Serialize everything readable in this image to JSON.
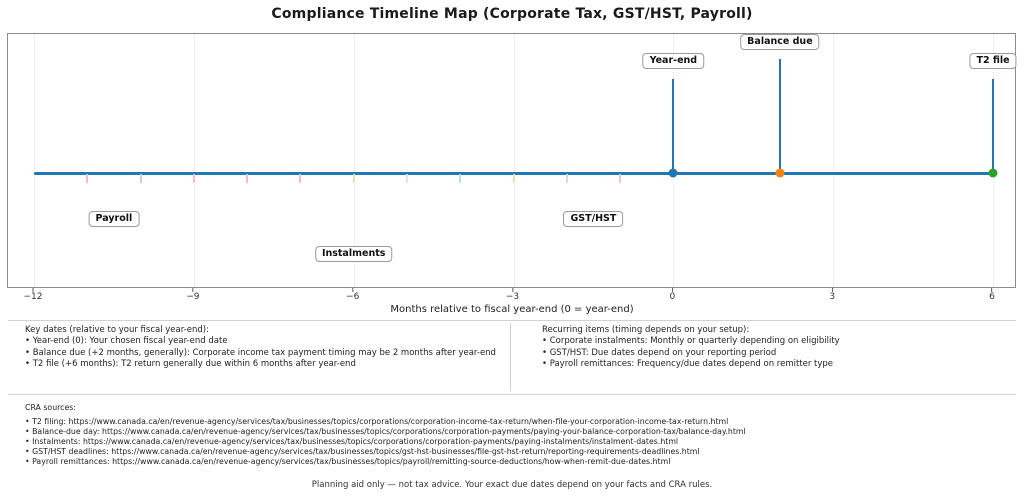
{
  "chart_data": {
    "type": "scatter",
    "subtype": "timeline",
    "title": "Compliance Timeline Map (Corporate Tax, GST/HST, Payroll)",
    "xlabel": "Months relative to fiscal year-end (0 = year-end)",
    "xlim": [
      -12.5,
      6.5
    ],
    "grid": "vertical-dotted-at-ticks",
    "legend": "none",
    "xticks": [
      {
        "label": "−12",
        "month": -12
      },
      {
        "label": "−9",
        "month": -9
      },
      {
        "label": "−6",
        "month": -6
      },
      {
        "label": "−3",
        "month": -3
      },
      {
        "label": "0",
        "month": 0
      },
      {
        "label": "3",
        "month": 3
      },
      {
        "label": "6",
        "month": 6
      }
    ],
    "timeline": {
      "start_month": -12,
      "end_month": 6,
      "color": "#1f77b4"
    },
    "milestones": [
      {
        "label": "Year-end",
        "month": 0,
        "dot_color": "#1f77b4",
        "stem_color": "#1f77b4",
        "label_level": "low"
      },
      {
        "label": "Balance due",
        "month": 2,
        "dot_color": "#ff7f0e",
        "stem_color": "#1f77b4",
        "label_level": "high"
      },
      {
        "label": "T2 file",
        "month": 6,
        "dot_color": "#2ca02c",
        "stem_color": "#1f77b4",
        "label_level": "low"
      }
    ],
    "recurring_labels": [
      {
        "label": "Payroll",
        "month": -10.5,
        "level": "upper"
      },
      {
        "label": "Instalments",
        "month": -6,
        "level": "lower"
      },
      {
        "label": "GST/HST",
        "month": -1.5,
        "level": "upper"
      }
    ],
    "recurring_ticks": [
      {
        "month": -11,
        "color": "#f3bcc6"
      },
      {
        "month": -10,
        "color": "#cfc7e6"
      },
      {
        "month": -9,
        "color": "#f3bcc6"
      },
      {
        "month": -8,
        "color": "#f3bcc6"
      },
      {
        "month": -7,
        "color": "#f3bcc6"
      },
      {
        "month": -6,
        "color": "#dde6ae"
      },
      {
        "month": -5,
        "color": "#cdeaf0"
      },
      {
        "month": -4,
        "color": "#bedaf0"
      },
      {
        "month": -3,
        "color": "#f7d9b5"
      },
      {
        "month": -2,
        "color": "#c8e7c4"
      },
      {
        "month": -1,
        "color": "#f6c3b7"
      }
    ]
  },
  "notes": {
    "key_dates": {
      "header": "Key dates (relative to your fiscal year-end):",
      "items": [
        "• Year-end (0): Your chosen fiscal year-end date",
        "• Balance due (+2 months, generally): Corporate income tax payment timing may be 2 months after year-end",
        "• T2 file (+6 months): T2 return generally due within 6 months after year-end"
      ]
    },
    "recurring": {
      "header": "Recurring items (timing depends on your setup):",
      "items": [
        "• Corporate instalments: Monthly or quarterly depending on eligibility",
        "• GST/HST: Due dates depend on your reporting period",
        "• Payroll remittances: Frequency/due dates depend on remitter type"
      ]
    }
  },
  "sources": {
    "header": "CRA sources:",
    "items": [
      "• T2 filing: https://www.canada.ca/en/revenue-agency/services/tax/businesses/topics/corporations/corporation-income-tax-return/when-file-your-corporation-income-tax-return.html",
      "• Balance-due day: https://www.canada.ca/en/revenue-agency/services/tax/businesses/topics/corporations/corporation-payments/paying-your-balance-corporation-tax/balance-day.html",
      "• Instalments: https://www.canada.ca/en/revenue-agency/services/tax/businesses/topics/corporations/corporation-payments/paying-instalments/instalment-dates.html",
      "• GST/HST deadlines: https://www.canada.ca/en/revenue-agency/services/tax/businesses/topics/gst-hst-businesses/file-gst-hst-return/reporting-requirements-deadlines.html",
      "• Payroll remittances: https://www.canada.ca/en/revenue-agency/services/tax/businesses/topics/payroll/remitting-source-deductions/how-when-remit-due-dates.html"
    ]
  },
  "footer": {
    "disclaimer": "Planning aid only — not tax advice. Your exact due dates depend on your facts and CRA rules."
  }
}
